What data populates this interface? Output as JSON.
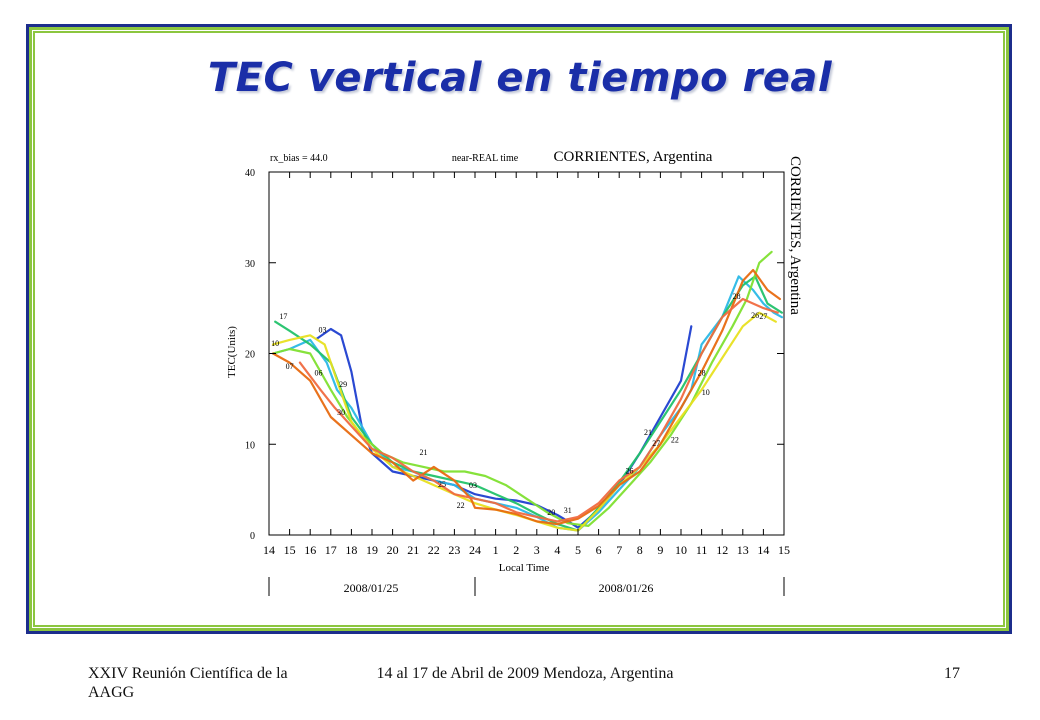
{
  "slide": {
    "title": "TEC vertical en tiempo real",
    "footer_left": "XXIV Reunión Científica de la AAGG",
    "footer_center": "14 al 17 de Abril de 2009 Mendoza, Argentina",
    "page_number": "17",
    "frame_color": "#1c2d8c",
    "frame_accent": "#8cc63f",
    "title_color": "#1a2ea8"
  },
  "chart_data": {
    "type": "line",
    "title": "CORRIENTES, Argentina",
    "side_label": "CORRIENTES, Argentina",
    "header_left": "rx_bias =  44.0",
    "header_center": "near-REAL time",
    "xlabel": "Local Time",
    "ylabel": "TEC(Units)",
    "x_ticks": [
      "14",
      "15",
      "16",
      "17",
      "18",
      "19",
      "20",
      "21",
      "22",
      "23",
      "24",
      "1",
      "2",
      "3",
      "4",
      "5",
      "6",
      "7",
      "8",
      "9",
      "10",
      "11",
      "12",
      "13",
      "14",
      "15"
    ],
    "y_ticks": [
      0,
      10,
      20,
      30,
      40
    ],
    "xlim": [
      14,
      39
    ],
    "ylim": [
      0,
      40
    ],
    "dates": [
      "2008/01/25",
      "2008/01/26"
    ],
    "series": [
      {
        "color": "#1f3fd0",
        "points": [
          [
            16.3,
            21.6
          ],
          [
            17.0,
            22.7
          ],
          [
            17.5,
            22.0
          ],
          [
            18,
            18
          ],
          [
            18.5,
            12
          ],
          [
            19,
            9
          ],
          [
            20,
            7
          ],
          [
            21,
            6.5
          ],
          [
            22,
            6
          ],
          [
            23,
            5.5
          ],
          [
            24,
            4.5
          ],
          [
            25,
            4
          ],
          [
            26,
            3.8
          ],
          [
            27,
            3.3
          ],
          [
            28,
            2.2
          ],
          [
            28.6,
            1.4
          ],
          [
            29,
            0.8
          ],
          [
            30,
            2.8
          ],
          [
            31,
            5.5
          ],
          [
            32,
            9
          ],
          [
            33,
            13
          ],
          [
            34,
            17
          ],
          [
            34.5,
            23
          ]
        ]
      },
      {
        "color": "#2ab8e6",
        "points": [
          [
            14.2,
            20
          ],
          [
            15,
            20.5
          ],
          [
            16,
            21.5
          ],
          [
            16.8,
            19
          ],
          [
            17.3,
            16
          ],
          [
            18,
            14
          ],
          [
            19,
            10
          ],
          [
            20,
            7.5
          ],
          [
            21,
            7
          ],
          [
            22,
            6
          ],
          [
            23,
            5.5
          ],
          [
            24,
            4
          ],
          [
            25,
            3.5
          ],
          [
            26,
            3
          ],
          [
            27,
            2
          ],
          [
            28,
            0.8
          ],
          [
            29,
            0.5
          ],
          [
            30,
            2.5
          ],
          [
            31,
            5
          ],
          [
            32,
            7.5
          ],
          [
            33,
            11
          ],
          [
            34,
            14
          ],
          [
            34.5,
            16
          ],
          [
            35,
            21
          ],
          [
            36,
            24
          ],
          [
            36.8,
            28.5
          ],
          [
            37.5,
            27
          ],
          [
            38,
            25.5
          ],
          [
            38.5,
            24.5
          ],
          [
            38.9,
            24
          ]
        ]
      },
      {
        "color": "#22c26a",
        "points": [
          [
            14.3,
            23.5
          ],
          [
            15,
            22.5
          ],
          [
            16,
            21
          ],
          [
            17,
            19
          ],
          [
            17.5,
            16
          ],
          [
            18,
            13
          ],
          [
            19,
            10
          ],
          [
            20,
            8
          ],
          [
            21,
            7
          ],
          [
            22,
            6.5
          ],
          [
            23,
            6
          ],
          [
            24,
            5.5
          ],
          [
            25,
            4.5
          ],
          [
            26,
            3.5
          ],
          [
            27,
            2.3
          ],
          [
            28,
            1.2
          ],
          [
            29,
            0.5
          ],
          [
            30,
            3
          ],
          [
            31,
            5.8
          ],
          [
            32,
            9
          ],
          [
            33,
            12.5
          ],
          [
            34,
            16
          ],
          [
            35,
            20
          ],
          [
            36,
            24
          ],
          [
            37,
            27.5
          ],
          [
            37.6,
            28.5
          ],
          [
            38.2,
            25.5
          ],
          [
            38.9,
            24.5
          ]
        ]
      },
      {
        "color": "#7fe030",
        "points": [
          [
            14.2,
            20
          ],
          [
            15,
            20.5
          ],
          [
            16,
            20
          ],
          [
            17,
            16
          ],
          [
            17.8,
            13
          ],
          [
            18.5,
            11
          ],
          [
            19.5,
            9
          ],
          [
            20.5,
            8
          ],
          [
            21.5,
            7.5
          ],
          [
            22.5,
            7
          ],
          [
            23.5,
            7
          ],
          [
            24.5,
            6.5
          ],
          [
            25.5,
            5.5
          ],
          [
            26.5,
            4
          ],
          [
            27.5,
            2.5
          ],
          [
            28.5,
            1.3
          ],
          [
            29.5,
            1
          ],
          [
            30.5,
            3
          ],
          [
            31.5,
            5.5
          ],
          [
            32.5,
            8
          ],
          [
            33.5,
            11
          ],
          [
            34.5,
            14.5
          ],
          [
            35.5,
            19
          ],
          [
            36.5,
            23
          ],
          [
            37.2,
            26
          ],
          [
            37.8,
            30
          ],
          [
            38.4,
            31.2
          ]
        ]
      },
      {
        "color": "#e8e020",
        "points": [
          [
            14.2,
            21
          ],
          [
            15,
            21.5
          ],
          [
            16,
            22
          ],
          [
            16.7,
            21
          ],
          [
            17.3,
            17
          ],
          [
            18,
            12.5
          ],
          [
            19,
            9.5
          ],
          [
            20,
            7.5
          ],
          [
            21,
            6.5
          ],
          [
            22,
            5.5
          ],
          [
            23,
            4.5
          ],
          [
            24,
            3.5
          ],
          [
            25,
            2.8
          ],
          [
            26,
            2.2
          ],
          [
            27,
            1.5
          ],
          [
            28,
            0.8
          ],
          [
            29,
            0.5
          ],
          [
            30,
            2.8
          ],
          [
            31,
            5.5
          ],
          [
            32,
            7.5
          ],
          [
            33,
            10
          ],
          [
            34,
            13
          ],
          [
            35,
            16
          ],
          [
            36,
            19.5
          ],
          [
            37,
            23
          ],
          [
            37.8,
            24.5
          ],
          [
            38.6,
            23.5
          ]
        ]
      },
      {
        "color": "#e86a10",
        "points": [
          [
            14.2,
            20
          ],
          [
            15,
            19
          ],
          [
            16,
            17
          ],
          [
            17,
            13
          ],
          [
            18,
            11
          ],
          [
            19,
            9
          ],
          [
            20,
            8
          ],
          [
            21,
            6
          ],
          [
            22,
            7.5
          ],
          [
            23,
            6
          ],
          [
            23.8,
            4
          ],
          [
            24,
            3
          ],
          [
            25,
            2.8
          ],
          [
            26,
            2.3
          ],
          [
            27,
            1.5
          ],
          [
            28,
            1.2
          ],
          [
            29,
            1.8
          ],
          [
            30,
            3.2
          ],
          [
            31,
            5.5
          ],
          [
            32,
            7
          ],
          [
            33,
            10
          ],
          [
            34,
            14
          ],
          [
            35,
            18
          ],
          [
            36,
            22.5
          ],
          [
            37,
            28
          ],
          [
            37.5,
            29.2
          ],
          [
            38.2,
            27
          ],
          [
            38.8,
            26
          ]
        ]
      },
      {
        "color": "#f06a40",
        "points": [
          [
            15.5,
            19
          ],
          [
            16.5,
            16
          ],
          [
            17.2,
            14
          ],
          [
            18,
            12
          ],
          [
            19,
            9.5
          ],
          [
            20,
            8.5
          ],
          [
            21,
            7
          ],
          [
            22,
            6
          ],
          [
            23,
            4.5
          ],
          [
            24,
            4
          ],
          [
            25,
            3.5
          ],
          [
            26,
            2.5
          ],
          [
            27,
            2
          ],
          [
            28,
            1.5
          ],
          [
            29,
            2
          ],
          [
            30,
            3.5
          ],
          [
            31,
            6
          ],
          [
            32,
            7.5
          ],
          [
            33,
            11
          ],
          [
            34,
            15
          ],
          [
            35,
            20
          ],
          [
            36,
            24
          ],
          [
            37,
            26
          ],
          [
            38,
            25
          ],
          [
            38.7,
            24.5
          ]
        ]
      }
    ],
    "labels": [
      {
        "text": "17",
        "x": 14.7,
        "y": 23.8
      },
      {
        "text": "10",
        "x": 14.3,
        "y": 20.8
      },
      {
        "text": "03",
        "x": 16.6,
        "y": 22.3
      },
      {
        "text": "07",
        "x": 15.0,
        "y": 18.3
      },
      {
        "text": "06",
        "x": 16.4,
        "y": 17.6
      },
      {
        "text": "29",
        "x": 17.6,
        "y": 16.3
      },
      {
        "text": "30",
        "x": 17.5,
        "y": 13.2
      },
      {
        "text": "21",
        "x": 21.5,
        "y": 8.8
      },
      {
        "text": "25",
        "x": 22.4,
        "y": 5.3
      },
      {
        "text": "03",
        "x": 23.9,
        "y": 5.2
      },
      {
        "text": "22",
        "x": 23.3,
        "y": 3.0
      },
      {
        "text": "20",
        "x": 27.7,
        "y": 2.2
      },
      {
        "text": "31",
        "x": 28.5,
        "y": 2.4
      },
      {
        "text": "26",
        "x": 31.5,
        "y": 6.8
      },
      {
        "text": "27",
        "x": 32.8,
        "y": 9.8
      },
      {
        "text": "22",
        "x": 33.7,
        "y": 10.2
      },
      {
        "text": "21",
        "x": 32.4,
        "y": 11.0
      },
      {
        "text": "28",
        "x": 35.0,
        "y": 17.6
      },
      {
        "text": "10",
        "x": 35.2,
        "y": 15.4
      },
      {
        "text": "26",
        "x": 37.6,
        "y": 23.9
      },
      {
        "text": "27",
        "x": 38.0,
        "y": 23.8
      },
      {
        "text": "28",
        "x": 36.7,
        "y": 26.0
      }
    ],
    "grid": false
  }
}
